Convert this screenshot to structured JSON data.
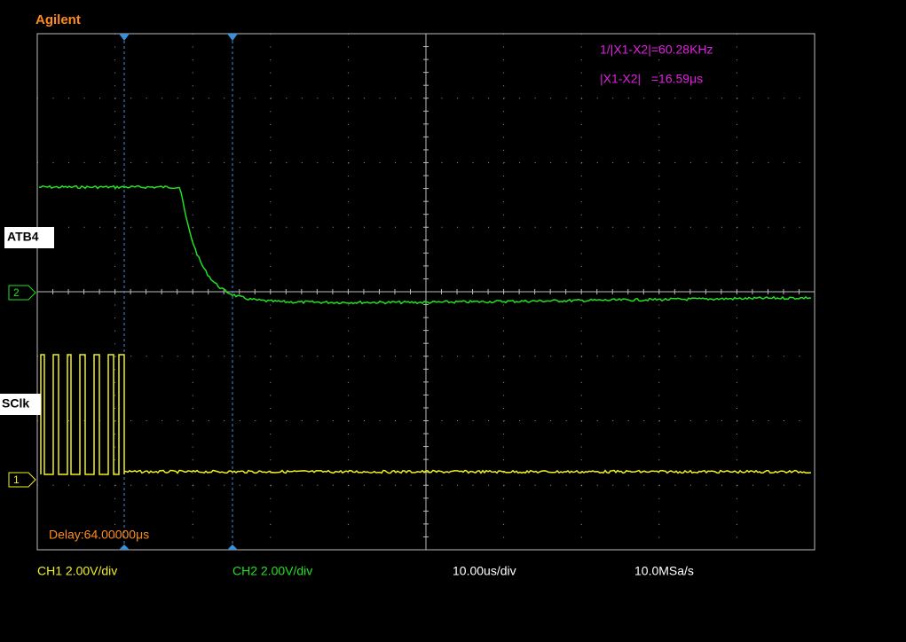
{
  "header": {
    "brand": "Agilent"
  },
  "measurements": [
    "1/|X1-X2|=60.28KHz",
    "|X1-X2|   =16.59μs"
  ],
  "channel_labels": [
    "ATB4",
    "SClk"
  ],
  "channel_markers": [
    "2",
    "1"
  ],
  "delay": "Delay:64.00000μs",
  "status_bar": [
    "CH1 2.00V/div",
    "CH2 2.00V/div",
    "10.00us/div",
    "10.0MSa/s"
  ]
}
